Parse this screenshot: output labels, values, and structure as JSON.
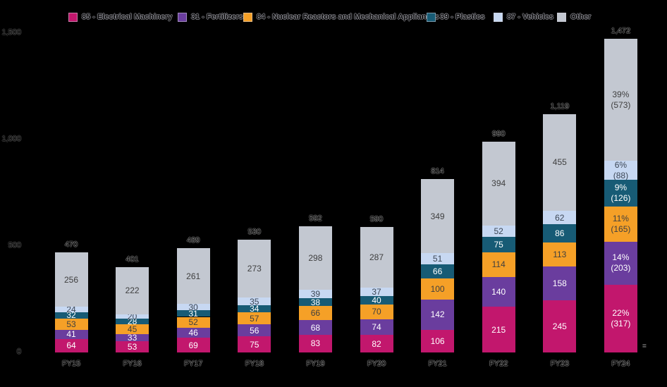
{
  "chart_data": {
    "type": "stacked-bar",
    "title": "",
    "legend_position": "top",
    "grid": false,
    "categories": [
      "FY15",
      "FY16",
      "FY17",
      "FY18",
      "FY19",
      "FY20",
      "FY21",
      "FY22",
      "FY23",
      "FY24"
    ],
    "series": [
      {
        "name": "85 - Electrical Machinery",
        "color": "#C2176D",
        "label_color": "#FFFFFF",
        "values": [
          64,
          53,
          69,
          75,
          83,
          82,
          106,
          215,
          245,
          317
        ],
        "final_label": [
          "22%",
          "(317)"
        ]
      },
      {
        "name": "31 - Fertilizers",
        "color": "#6A3D9E",
        "label_color": "#FFFFFF",
        "values": [
          41,
          33,
          46,
          56,
          68,
          74,
          142,
          140,
          158,
          203
        ],
        "final_label": [
          "14%",
          "(203)"
        ]
      },
      {
        "name": "84 - Nuclear Reactors and Mechanical Appliances",
        "color": "#F5A027",
        "label_color": "#3F3F3F",
        "values": [
          53,
          45,
          52,
          57,
          66,
          70,
          100,
          114,
          113,
          165
        ],
        "final_label": [
          "11%",
          "(165)"
        ]
      },
      {
        "name": "39 - Plastics",
        "color": "#175B75",
        "label_color": "#FFFFFF",
        "values": [
          32,
          28,
          31,
          34,
          38,
          40,
          66,
          75,
          86,
          126
        ],
        "final_label": [
          "9%",
          "(126)"
        ]
      },
      {
        "name": "87 - Vehicles",
        "color": "#C7D8F2",
        "label_color": "#3C4654",
        "values": [
          24,
          20,
          30,
          35,
          39,
          37,
          51,
          52,
          62,
          88
        ],
        "final_label": [
          "6%",
          "(88)"
        ]
      },
      {
        "name": "Other",
        "color": "#C3C8D1",
        "label_color": "#3F3F3F",
        "values": [
          256,
          222,
          261,
          273,
          298,
          287,
          349,
          394,
          455,
          573
        ],
        "final_label": [
          "39%",
          "(573)"
        ]
      }
    ],
    "totals": [
      "470",
      "401",
      "489",
      "530",
      "592",
      "590",
      "814",
      "990",
      "1,119",
      "1,472"
    ],
    "y_axis": {
      "max": 1500,
      "ticks": [
        {
          "label": "0",
          "value": 0
        },
        {
          "label": "500",
          "value": 500
        },
        {
          "label": "1,000",
          "value": 1000
        },
        {
          "label": "1,500",
          "value": 1500
        }
      ]
    }
  },
  "footnote_mark": "="
}
